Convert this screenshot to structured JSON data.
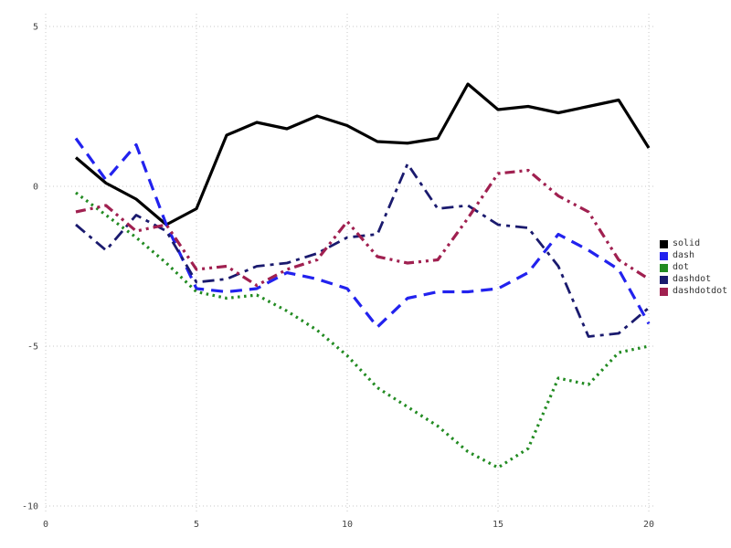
{
  "chart_data": {
    "type": "line",
    "title": "",
    "xlabel": "",
    "ylabel": "",
    "xlim": [
      0,
      20.15
    ],
    "ylim": [
      -10.2,
      5.4
    ],
    "xticks": [
      0,
      5,
      10,
      15,
      20
    ],
    "yticks": [
      -10,
      -5,
      0,
      5
    ],
    "grid": true,
    "grid_color": "#c8c8c8",
    "legend_position": "right",
    "x": [
      1,
      2,
      3,
      4,
      5,
      6,
      7,
      8,
      9,
      10,
      11,
      12,
      13,
      14,
      15,
      16,
      17,
      18,
      19,
      20
    ],
    "series": [
      {
        "name": "solid",
        "color": "#000000",
        "line_style": "solid",
        "width": 3.2,
        "values": [
          0.9,
          0.1,
          -0.4,
          -1.2,
          -0.7,
          1.6,
          2.0,
          1.8,
          2.2,
          1.9,
          1.4,
          1.35,
          1.5,
          3.2,
          2.4,
          2.5,
          2.3,
          2.5,
          2.7,
          1.2
        ]
      },
      {
        "name": "dash",
        "color": "#2222ee",
        "line_style": "dash",
        "width": 3.2,
        "values": [
          1.5,
          0.2,
          1.3,
          -1.2,
          -3.2,
          -3.3,
          -3.2,
          -2.7,
          -2.9,
          -3.2,
          -4.4,
          -3.5,
          -3.3,
          -3.3,
          -3.2,
          -2.7,
          -1.5,
          -2.0,
          -2.6,
          -4.3
        ]
      },
      {
        "name": "dot",
        "color": "#228b22",
        "line_style": "dot",
        "width": 3.2,
        "values": [
          -0.2,
          -0.9,
          -1.6,
          -2.4,
          -3.3,
          -3.5,
          -3.4,
          -3.9,
          -4.5,
          -5.3,
          -6.3,
          -6.9,
          -7.5,
          -8.3,
          -8.8,
          -8.2,
          -6.0,
          -6.2,
          -5.2,
          -5.0
        ]
      },
      {
        "name": "dashdot",
        "color": "#1a1a6e",
        "line_style": "dashdot",
        "width": 2.8,
        "values": [
          -1.2,
          -2.0,
          -0.9,
          -1.4,
          -3.0,
          -2.9,
          -2.5,
          -2.4,
          -2.1,
          -1.6,
          -1.5,
          0.7,
          -0.7,
          -0.6,
          -1.2,
          -1.3,
          -2.5,
          -4.7,
          -4.6,
          -3.8
        ]
      },
      {
        "name": "dashdotdot",
        "color": "#a02050",
        "line_style": "dashdotdot",
        "width": 3.2,
        "values": [
          -0.8,
          -0.6,
          -1.4,
          -1.2,
          -2.6,
          -2.5,
          -3.1,
          -2.6,
          -2.3,
          -1.1,
          -2.2,
          -2.4,
          -2.3,
          -1.0,
          0.4,
          0.5,
          -0.3,
          -0.8,
          -2.3,
          -2.9
        ]
      }
    ]
  }
}
